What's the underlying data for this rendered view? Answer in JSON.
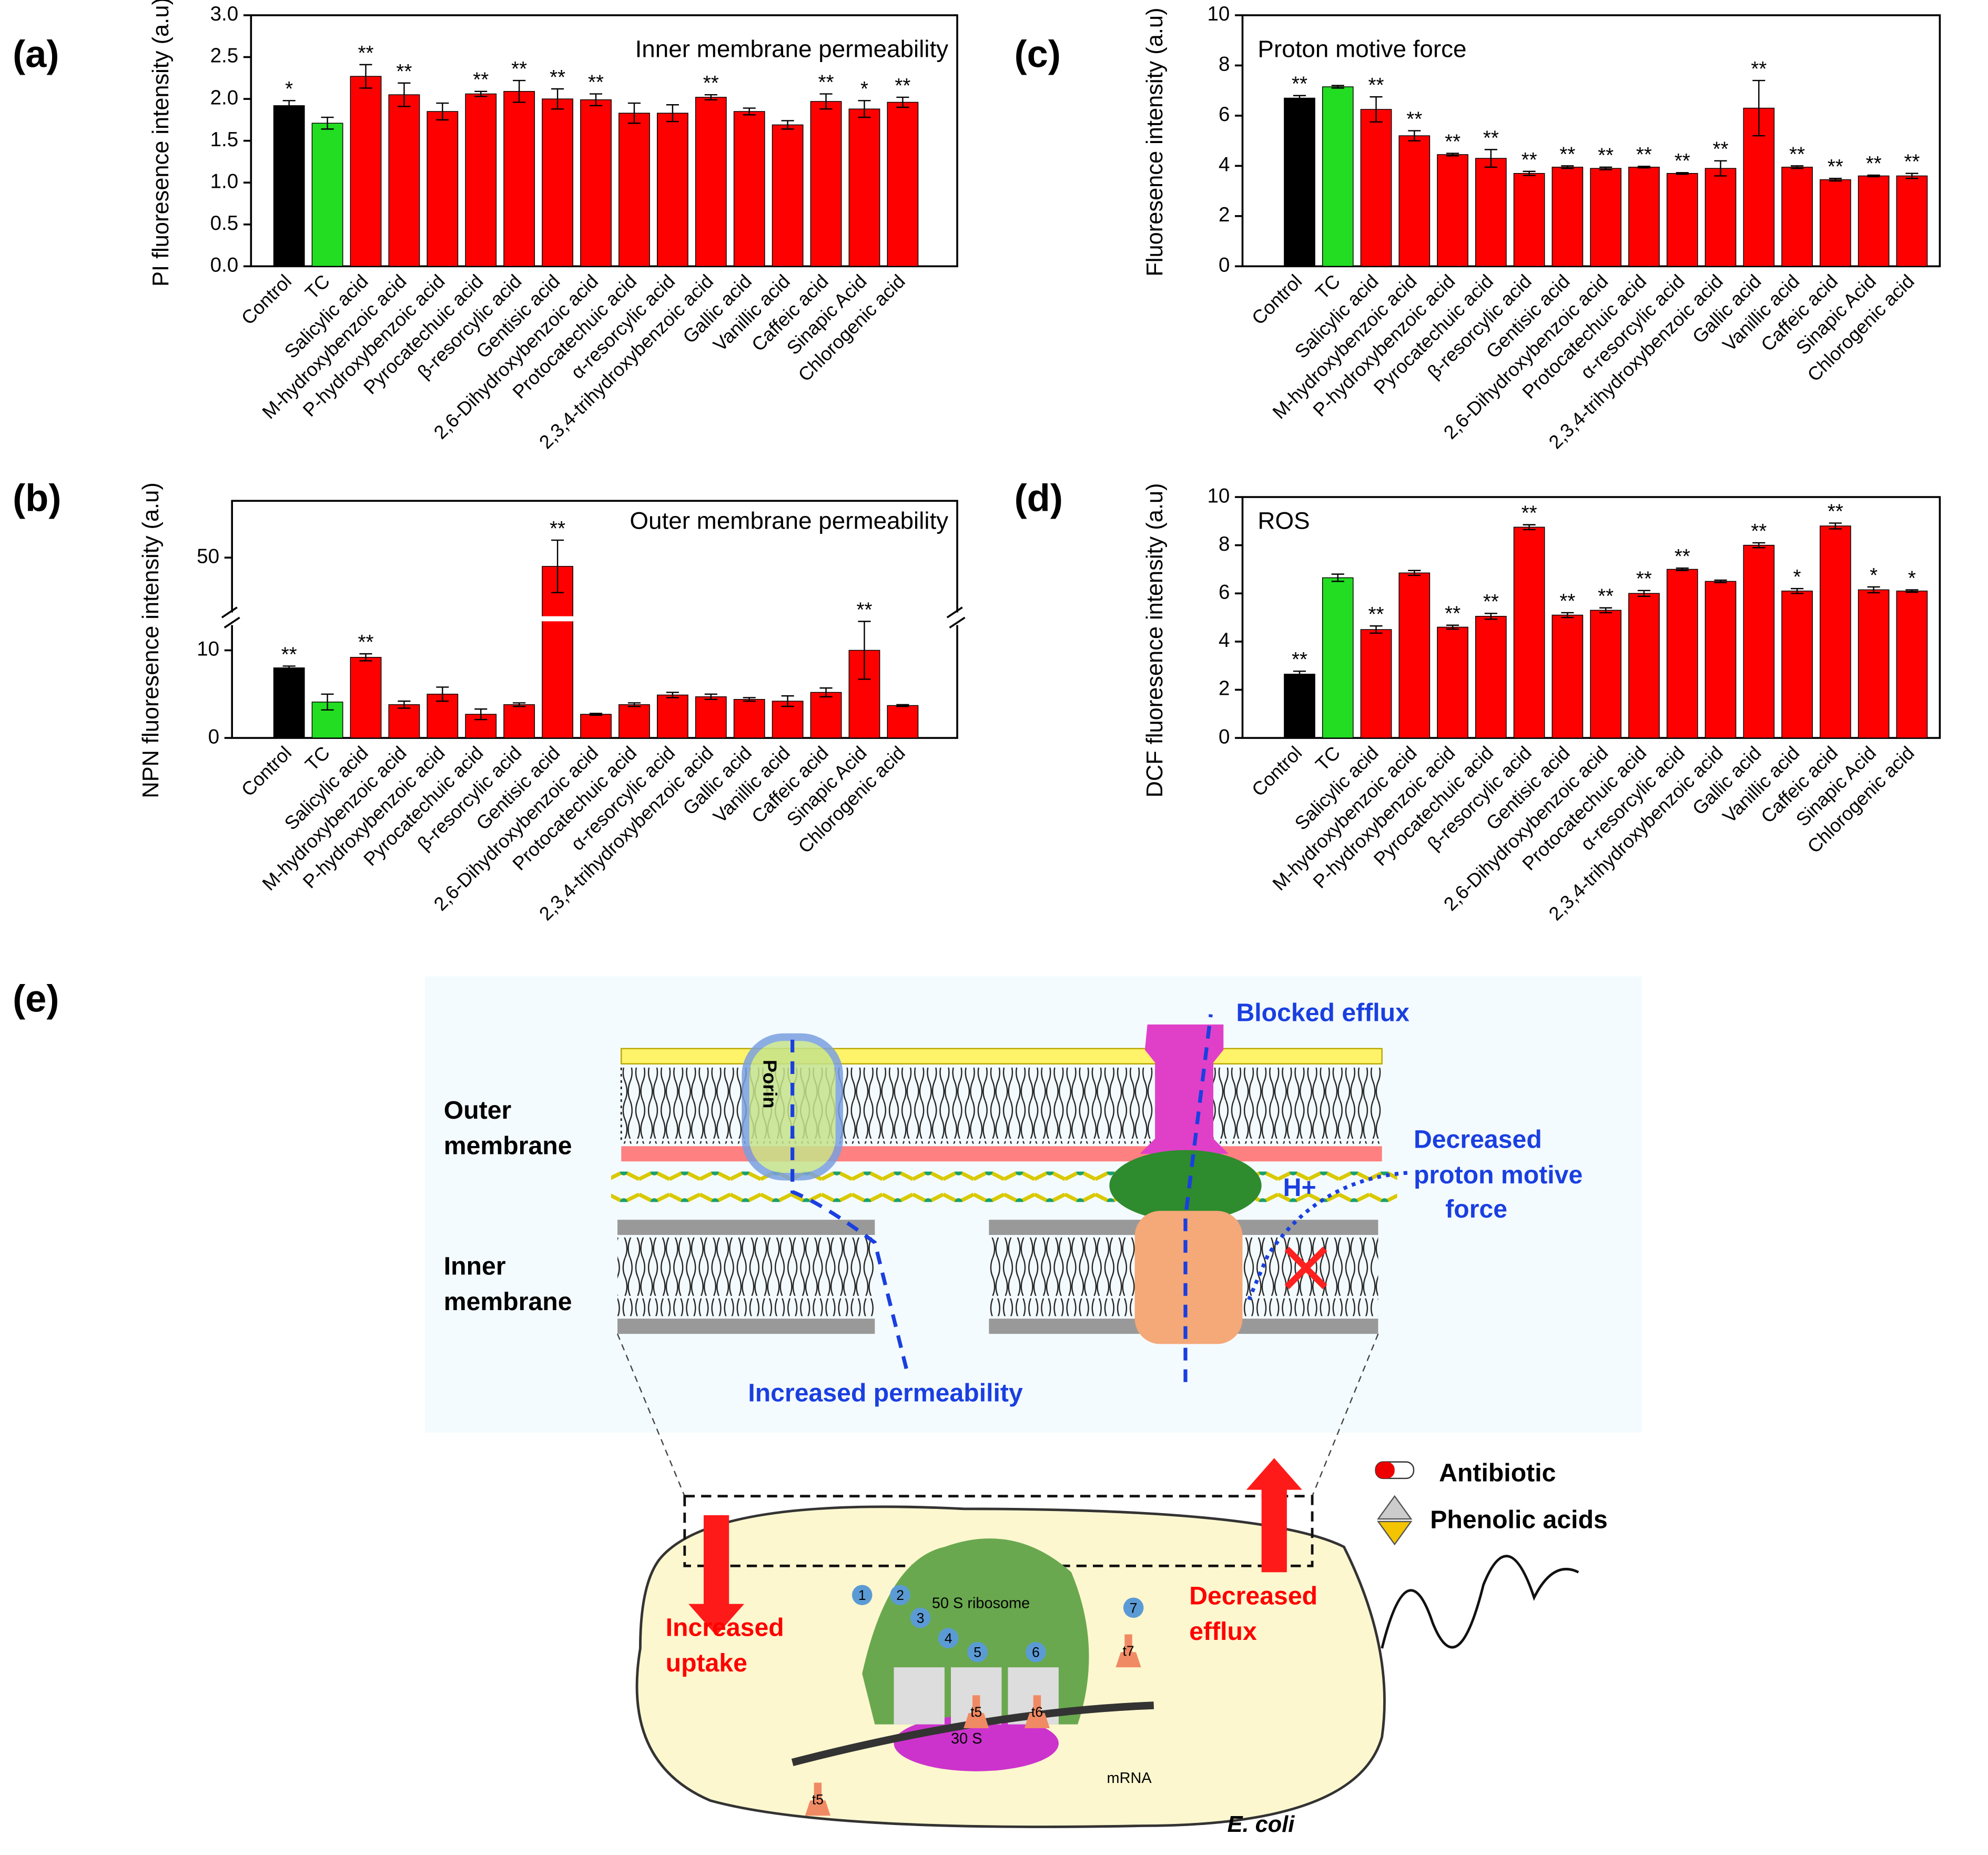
{
  "chart_data": [
    {
      "type": "bar",
      "panel_label": "(a)",
      "title": "Inner membrane permeability",
      "ylabel": "PI fluoresence intensity (a.u)",
      "categories": [
        "Control",
        "TC",
        "Salicylic acid",
        "M-hydroxybenzoic acid",
        "P-hydroxybenzoic acid",
        "Pyrocatechuic acid",
        "β-resorcylic acid",
        "Gentisic acid",
        "2,6-Dihydroxybenzoic acid",
        "Protocatechuic acid",
        "α-resorcylic acid",
        "2,3,4-trihydroxybenzoic acid",
        "Gallic acid",
        "Vanillic acid",
        "Caffeic acid",
        "Sinapic Acid",
        "Chlorogenic acid"
      ],
      "values": [
        1.92,
        1.71,
        2.27,
        2.05,
        1.85,
        2.06,
        2.09,
        2.0,
        1.99,
        1.83,
        1.83,
        2.02,
        1.85,
        1.69,
        1.97,
        1.88,
        1.96
      ],
      "errors": [
        0.06,
        0.07,
        0.14,
        0.14,
        0.1,
        0.03,
        0.13,
        0.12,
        0.07,
        0.12,
        0.1,
        0.03,
        0.04,
        0.05,
        0.09,
        0.1,
        0.06
      ],
      "annotations": [
        "*",
        null,
        "**",
        "**",
        null,
        "**",
        "**",
        "**",
        "**",
        null,
        null,
        "**",
        null,
        null,
        "**",
        "*",
        "**"
      ],
      "colors": [
        "#000000",
        "#22dd22",
        "#ff0000",
        "#ff0000",
        "#ff0000",
        "#ff0000",
        "#ff0000",
        "#ff0000",
        "#ff0000",
        "#ff0000",
        "#ff0000",
        "#ff0000",
        "#ff0000",
        "#ff0000",
        "#ff0000",
        "#ff0000",
        "#ff0000"
      ],
      "ylim": [
        0,
        3.0
      ],
      "yticks": [
        {
          "value": 0,
          "label": "0.0"
        },
        {
          "value": 0.5,
          "label": "0.5"
        },
        {
          "value": 1,
          "label": "1.0"
        },
        {
          "value": 1.5,
          "label": "1.5"
        },
        {
          "value": 2,
          "label": "2.0"
        },
        {
          "value": 2.5,
          "label": "2.5"
        },
        {
          "value": 3,
          "label": "3.0"
        }
      ]
    },
    {
      "type": "bar",
      "panel_label": "(b)",
      "title": "Outer membrane permeability",
      "ylabel": "NPN fluoresence intensity (a.u)",
      "categories": [
        "Control",
        "TC",
        "Salicylic acid",
        "M-hydroxybenzoic acid",
        "P-hydroxybenzoic acid",
        "Pyrocatechuic acid",
        "β-resorcylic acid",
        "Gentisic acid",
        "2,6-Dihydroxybenzoic acid",
        "Protocatechuic acid",
        "α-resorcylic acid",
        "2,3,4-trihydroxybenzoic acid",
        "Gallic acid",
        "Vanillic acid",
        "Caffeic acid",
        "Sinapic Acid",
        "Chlorogenic acid"
      ],
      "values": [
        8.0,
        4.1,
        9.2,
        3.8,
        5.0,
        2.7,
        3.8,
        49,
        2.7,
        3.8,
        4.9,
        4.7,
        4.4,
        4.2,
        5.2,
        10,
        3.7
      ],
      "errors": [
        0.2,
        0.9,
        0.4,
        0.4,
        0.8,
        0.6,
        0.2,
        3,
        0.1,
        0.2,
        0.3,
        0.3,
        0.2,
        0.6,
        0.5,
        3.3,
        0.1
      ],
      "annotations": [
        "**",
        null,
        "**",
        null,
        null,
        null,
        null,
        "**",
        null,
        null,
        null,
        null,
        null,
        null,
        null,
        "**",
        null
      ],
      "colors": [
        "#000000",
        "#22dd22",
        "#ff0000",
        "#ff0000",
        "#ff0000",
        "#ff0000",
        "#ff0000",
        "#ff0000",
        "#ff0000",
        "#ff0000",
        "#ff0000",
        "#ff0000",
        "#ff0000",
        "#ff0000",
        "#ff0000",
        "#ff0000",
        "#ff0000"
      ],
      "ylim": [
        0,
        13.6
      ],
      "ylim_upper": [
        43,
        56.5
      ],
      "axis_break": true,
      "yticks": [
        0,
        10,
        50
      ]
    },
    {
      "type": "bar",
      "panel_label": "(c)",
      "title": "Proton motive force",
      "ylabel": "Fluoresence intensity (a.u)",
      "categories": [
        "Control",
        "TC",
        "Salicylic acid",
        "M-hydroxybenzoic acid",
        "P-hydroxybenzoic acid",
        "Pyrocatechuic acid",
        "β-resorcylic acid",
        "Gentisic acid",
        "2,6-Dihydroxybenzoic acid",
        "Protocatechuic acid",
        "α-resorcylic acid",
        "2,3,4-trihydroxybenzoic acid",
        "Gallic acid",
        "Vanillic acid",
        "Caffeic acid",
        "Sinapic Acid",
        "Chlorogenic acid"
      ],
      "values": [
        6.7,
        7.15,
        6.25,
        5.2,
        4.45,
        4.3,
        3.7,
        3.95,
        3.9,
        3.95,
        3.7,
        3.9,
        6.3,
        3.95,
        3.45,
        3.6,
        3.6
      ],
      "errors": [
        0.1,
        0.05,
        0.5,
        0.2,
        0.05,
        0.35,
        0.08,
        0.05,
        0.05,
        0.03,
        0.03,
        0.3,
        1.1,
        0.05,
        0.05,
        0.03,
        0.1
      ],
      "annotations": [
        "**",
        null,
        "**",
        "**",
        "**",
        "**",
        "**",
        "**",
        "**",
        "**",
        "**",
        "**",
        "**",
        "**",
        "**",
        "**",
        "**"
      ],
      "colors": [
        "#000000",
        "#22dd22",
        "#ff0000",
        "#ff0000",
        "#ff0000",
        "#ff0000",
        "#ff0000",
        "#ff0000",
        "#ff0000",
        "#ff0000",
        "#ff0000",
        "#ff0000",
        "#ff0000",
        "#ff0000",
        "#ff0000",
        "#ff0000",
        "#ff0000"
      ],
      "ylim": [
        0,
        10
      ],
      "yticks": [
        0,
        2,
        4,
        6,
        8,
        10
      ]
    },
    {
      "type": "bar",
      "panel_label": "(d)",
      "title": "ROS",
      "ylabel": "DCF fluoresence intensity (a.u)",
      "categories": [
        "Control",
        "TC",
        "Salicylic acid",
        "M-hydroxybenzoic acid",
        "P-hydroxybenzoic acid",
        "Pyrocatechuic acid",
        "β-resorcylic acid",
        "Gentisic acid",
        "2,6-Dihydroxybenzoic acid",
        "Protocatechuic acid",
        "α-resorcylic acid",
        "2,3,4-trihydroxybenzoic acid",
        "Gallic acid",
        "Vanillic acid",
        "Caffeic acid",
        "Sinapic Acid",
        "Chlorogenic acid"
      ],
      "values": [
        2.65,
        6.65,
        4.5,
        6.85,
        4.6,
        5.05,
        8.75,
        5.1,
        5.3,
        6.0,
        7.0,
        6.5,
        8.0,
        6.1,
        8.8,
        6.15,
        6.1
      ],
      "errors": [
        0.12,
        0.15,
        0.15,
        0.1,
        0.08,
        0.12,
        0.1,
        0.1,
        0.1,
        0.12,
        0.05,
        0.05,
        0.1,
        0.1,
        0.12,
        0.12,
        0.05
      ],
      "annotations": [
        "**",
        null,
        "**",
        null,
        "**",
        "**",
        "**",
        "**",
        "**",
        "**",
        "**",
        null,
        "**",
        "*",
        "**",
        "*",
        "*"
      ],
      "colors": [
        "#000000",
        "#22dd22",
        "#ff0000",
        "#ff0000",
        "#ff0000",
        "#ff0000",
        "#ff0000",
        "#ff0000",
        "#ff0000",
        "#ff0000",
        "#ff0000",
        "#ff0000",
        "#ff0000",
        "#ff0000",
        "#ff0000",
        "#ff0000",
        "#ff0000"
      ],
      "ylim": [
        0,
        10
      ],
      "yticks": [
        0,
        2,
        4,
        6,
        8,
        10
      ]
    }
  ],
  "diagram": {
    "panel_label": "(e)",
    "outer_membrane": [
      "Outer",
      "membrane"
    ],
    "inner_membrane": [
      "Inner",
      "membrane"
    ],
    "porin": "Porin",
    "blocked_efflux": "Blocked efflux",
    "decreased_pmf": [
      "Decreased",
      "proton motive",
      "force"
    ],
    "proton": "H+",
    "increased_permeability": "Increased permeability",
    "legend": [
      "Antibiotic",
      "Phenolic acids"
    ],
    "increased_uptake": [
      "Increased",
      "uptake"
    ],
    "decreased_efflux": [
      "Decreased",
      "efflux"
    ],
    "ribosome_50s": "50 S ribosome",
    "ribosome_30s": "30 S",
    "mrna": "mRNA",
    "organism": "E. coli",
    "sites": [
      "1",
      "2",
      "3",
      "4",
      "5",
      "6",
      "7"
    ],
    "trnas": [
      "t5",
      "t6",
      "t7",
      "t5"
    ]
  }
}
